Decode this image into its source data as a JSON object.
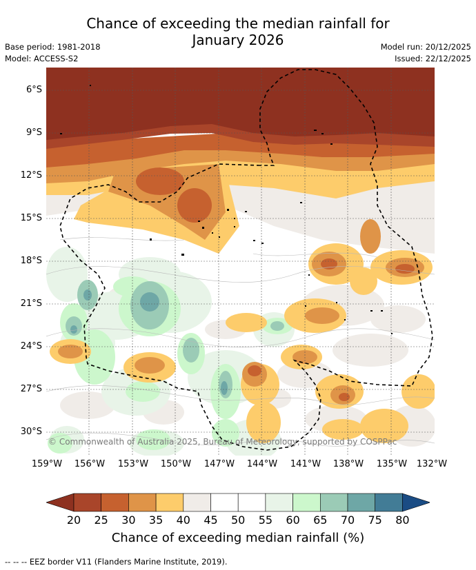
{
  "header": {
    "title_line1": "Chance of exceeding the median rainfall for",
    "title_line2": "January 2026",
    "base_period": "Base period: 1981-2018",
    "model": "Model: ACCESS-S2",
    "model_run": "Model run: 20/12/2025",
    "issued": "Issued: 22/12/2025"
  },
  "map": {
    "lat_labels": [
      "6°S",
      "9°S",
      "12°S",
      "15°S",
      "18°S",
      "21°S",
      "24°S",
      "27°S",
      "30°S"
    ],
    "lon_labels": [
      "159°W",
      "156°W",
      "153°W",
      "150°W",
      "147°W",
      "144°W",
      "141°W",
      "138°W",
      "135°W",
      "132°W"
    ],
    "copyright": "© Commonwealth of Australia 2025, Bureau of Meteorology, supported by COSPPac"
  },
  "colorbar": {
    "ticks": [
      "20",
      "25",
      "30",
      "35",
      "40",
      "45",
      "50",
      "55",
      "60",
      "65",
      "70",
      "75",
      "80"
    ],
    "colors": [
      "#8e3120",
      "#a9452a",
      "#c6612f",
      "#df9448",
      "#fdcc6b",
      "#f0ece8",
      "#ffffff",
      "#ffffff",
      "#e8f4e8",
      "#ccf7cc",
      "#9bcbb6",
      "#6ea7a6",
      "#427c96",
      "#1a4c84"
    ],
    "label": "Chance of exceeding median rainfall (%)"
  },
  "footnote": "--  --  -- EEZ border V11 (Flanders Marine Institute, 2019)."
}
